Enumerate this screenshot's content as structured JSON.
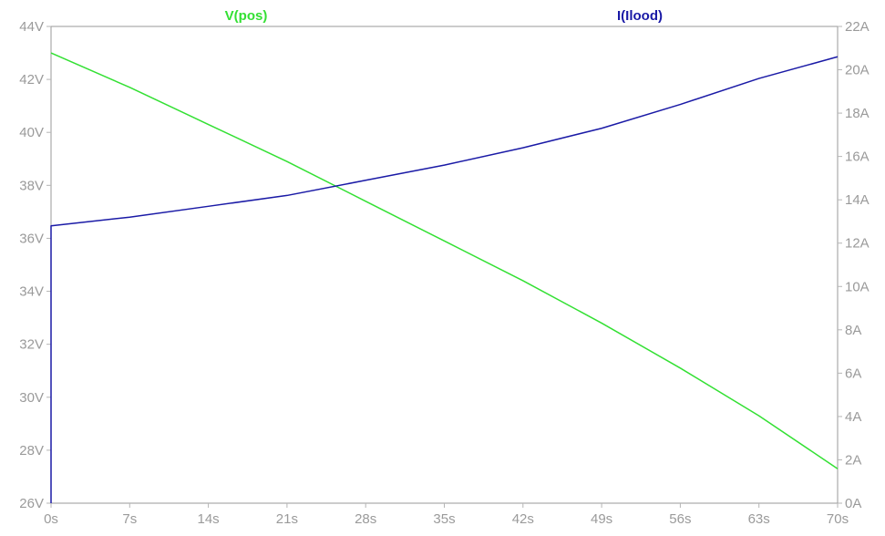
{
  "chart_data": {
    "type": "line",
    "title": "",
    "xlabel": "",
    "x_tick_labels": [
      "0s",
      "7s",
      "14s",
      "21s",
      "28s",
      "35s",
      "42s",
      "49s",
      "56s",
      "63s",
      "70s"
    ],
    "x_ticks": [
      0,
      7,
      14,
      21,
      28,
      35,
      42,
      49,
      56,
      63,
      70
    ],
    "xlim": [
      0,
      70
    ],
    "left_axis": {
      "ylim": [
        26,
        44
      ],
      "ticks": [
        26,
        28,
        30,
        32,
        34,
        36,
        38,
        40,
        42,
        44
      ],
      "tick_labels": [
        "26V",
        "28V",
        "30V",
        "32V",
        "34V",
        "36V",
        "38V",
        "40V",
        "42V",
        "44V"
      ]
    },
    "right_axis": {
      "ylim": [
        0,
        22
      ],
      "ticks": [
        0,
        2,
        4,
        6,
        8,
        10,
        12,
        14,
        16,
        18,
        20,
        22
      ],
      "tick_labels": [
        "0A",
        "2A",
        "4A",
        "6A",
        "8A",
        "10A",
        "12A",
        "14A",
        "16A",
        "18A",
        "20A",
        "22A"
      ]
    },
    "grid": false,
    "series": [
      {
        "name": "V(pos)",
        "axis": "left",
        "color": "#33e033",
        "x": [
          0,
          7,
          14,
          21,
          28,
          35,
          42,
          49,
          56,
          63,
          70
        ],
        "y": [
          43.0,
          41.7,
          40.3,
          38.9,
          37.4,
          35.9,
          34.4,
          32.8,
          31.1,
          29.3,
          27.3
        ]
      },
      {
        "name": "I(Ilood)",
        "axis": "right",
        "color": "#1a1aa6",
        "x": [
          0,
          0,
          7,
          14,
          21,
          28,
          35,
          42,
          49,
          56,
          63,
          70
        ],
        "y": [
          0,
          12.8,
          13.2,
          13.7,
          14.2,
          14.9,
          15.6,
          16.4,
          17.3,
          18.4,
          19.6,
          20.6
        ]
      }
    ]
  }
}
